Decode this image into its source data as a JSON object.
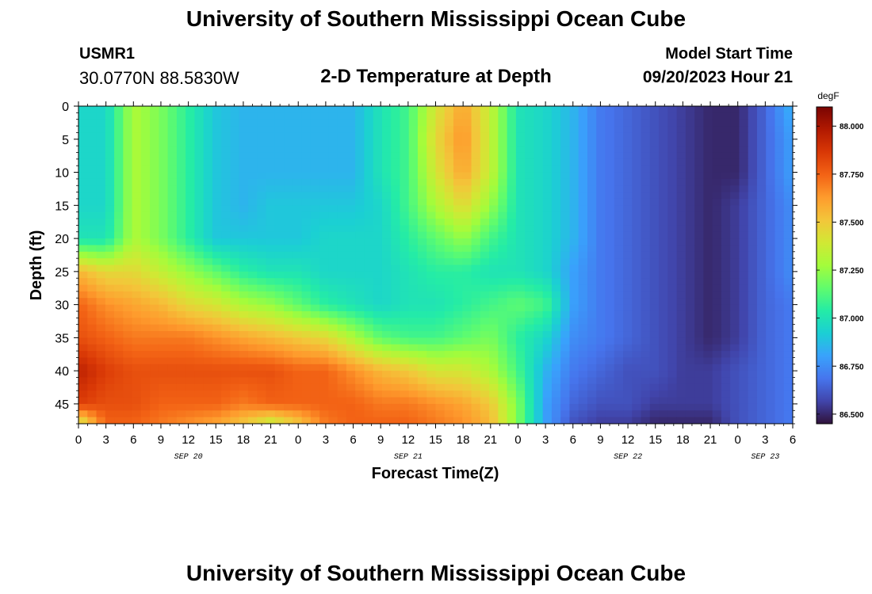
{
  "header": {
    "title": "University of Southern Mississippi Ocean Cube",
    "station_id": "USMR1",
    "station_coords": "30.0770N  88.5830W",
    "subtitle": "2-D Temperature at Depth",
    "model_start_label": "Model Start Time",
    "model_start_value": "09/20/2023 Hour 21"
  },
  "footer": {
    "title": "University of Southern Mississippi Ocean Cube"
  },
  "chart_data": {
    "type": "heatmap",
    "title": "2-D Temperature at Depth",
    "xlabel": "Forecast Time(Z)",
    "ylabel": "Depth (ft)",
    "colorbar_unit": "degF",
    "x_range_hours": [
      0,
      78
    ],
    "x_tick_labels": [
      "0",
      "3",
      "6",
      "9",
      "12",
      "15",
      "18",
      "21",
      "0",
      "3",
      "6",
      "9",
      "12",
      "15",
      "18",
      "21",
      "0",
      "3",
      "6",
      "9",
      "12",
      "15",
      "18",
      "21",
      "0",
      "3",
      "6"
    ],
    "date_labels": [
      {
        "label": "SEP 20",
        "at_hour": 12
      },
      {
        "label": "SEP 21",
        "at_hour": 36
      },
      {
        "label": "SEP 22",
        "at_hour": 60
      },
      {
        "label": "SEP 23",
        "at_hour": 75
      }
    ],
    "y_range_ft": [
      0,
      48
    ],
    "y_tick_labels": [
      "0",
      "5",
      "10",
      "15",
      "20",
      "25",
      "30",
      "35",
      "40",
      "45"
    ],
    "colorbar": {
      "min": 86.45,
      "max": 88.1,
      "ticks": [
        "86.500",
        "86.750",
        "87.000",
        "87.250",
        "87.500",
        "87.750",
        "88.000"
      ],
      "colors": [
        "#30123b",
        "#4145ab",
        "#4675ed",
        "#39a2fc",
        "#1bcfd4",
        "#24eca6",
        "#61fc6c",
        "#a4fc3b",
        "#d1e834",
        "#f3c63a",
        "#fe9b2d",
        "#f36315",
        "#d93806",
        "#b11901",
        "#7a0402"
      ]
    },
    "time_columns_hours": [
      0,
      3,
      6,
      9,
      12,
      15,
      18,
      21,
      24,
      27,
      30,
      33,
      36,
      39,
      42,
      45,
      48,
      51,
      54,
      57,
      60,
      63,
      66,
      69,
      72,
      75,
      78
    ],
    "depth_rows_ft": [
      0,
      5,
      10,
      15,
      20,
      25,
      30,
      35,
      40,
      45,
      48
    ],
    "values_degF": [
      [
        86.95,
        86.95,
        87.3,
        87.2,
        87.05,
        86.9,
        86.85,
        86.85,
        86.85,
        86.85,
        86.85,
        87.0,
        87.1,
        87.4,
        87.6,
        87.35,
        87.0,
        86.95,
        86.85,
        86.7,
        86.65,
        86.6,
        86.55,
        86.5,
        86.5,
        86.65,
        86.85
      ],
      [
        86.95,
        86.95,
        87.3,
        87.2,
        87.05,
        86.9,
        86.85,
        86.85,
        86.85,
        86.85,
        86.85,
        87.0,
        87.1,
        87.45,
        87.65,
        87.35,
        87.0,
        86.95,
        86.85,
        86.7,
        86.65,
        86.6,
        86.55,
        86.5,
        86.5,
        86.65,
        86.8
      ],
      [
        86.95,
        86.95,
        87.3,
        87.2,
        87.05,
        86.9,
        86.85,
        86.85,
        86.85,
        86.85,
        86.85,
        87.0,
        87.1,
        87.4,
        87.6,
        87.35,
        87.0,
        86.95,
        86.85,
        86.7,
        86.65,
        86.6,
        86.55,
        86.5,
        86.5,
        86.65,
        86.8
      ],
      [
        86.95,
        86.95,
        87.3,
        87.2,
        87.05,
        86.9,
        86.85,
        86.9,
        86.9,
        86.9,
        86.9,
        86.95,
        87.1,
        87.3,
        87.45,
        87.25,
        87.0,
        86.95,
        86.85,
        86.7,
        86.65,
        86.6,
        86.55,
        86.5,
        86.55,
        86.65,
        86.75
      ],
      [
        87.0,
        87.0,
        87.3,
        87.2,
        87.05,
        86.9,
        86.9,
        86.9,
        86.9,
        86.95,
        86.95,
        86.95,
        87.05,
        87.15,
        87.25,
        87.1,
        87.0,
        86.95,
        86.85,
        86.7,
        86.65,
        86.6,
        86.55,
        86.5,
        86.55,
        86.65,
        86.75
      ],
      [
        87.55,
        87.45,
        87.45,
        87.35,
        87.25,
        87.15,
        87.05,
        87.0,
        87.0,
        86.95,
        86.95,
        86.95,
        87.0,
        87.05,
        87.05,
        87.0,
        87.0,
        86.95,
        86.8,
        86.7,
        86.65,
        86.6,
        86.55,
        86.5,
        86.55,
        86.65,
        86.75
      ],
      [
        87.75,
        87.65,
        87.6,
        87.55,
        87.45,
        87.4,
        87.3,
        87.25,
        87.15,
        87.05,
        87.0,
        86.95,
        87.0,
        87.0,
        87.05,
        87.1,
        87.15,
        87.1,
        86.8,
        86.7,
        86.65,
        86.6,
        86.55,
        86.5,
        86.55,
        86.65,
        86.7
      ],
      [
        87.8,
        87.75,
        87.7,
        87.7,
        87.7,
        87.65,
        87.6,
        87.55,
        87.5,
        87.45,
        87.3,
        87.15,
        87.1,
        87.1,
        87.15,
        87.2,
        87.05,
        86.95,
        86.75,
        86.7,
        86.65,
        86.6,
        86.55,
        86.5,
        86.55,
        86.65,
        86.7
      ],
      [
        87.95,
        87.85,
        87.8,
        87.8,
        87.8,
        87.8,
        87.8,
        87.8,
        87.75,
        87.75,
        87.65,
        87.55,
        87.5,
        87.4,
        87.4,
        87.3,
        87.1,
        86.85,
        86.7,
        86.65,
        86.6,
        86.6,
        86.55,
        86.55,
        86.6,
        86.65,
        86.7
      ],
      [
        87.85,
        87.8,
        87.8,
        87.75,
        87.75,
        87.75,
        87.7,
        87.75,
        87.75,
        87.75,
        87.75,
        87.7,
        87.7,
        87.65,
        87.6,
        87.5,
        87.2,
        86.8,
        86.65,
        86.6,
        86.6,
        86.55,
        86.55,
        86.55,
        86.6,
        86.65,
        86.7
      ],
      [
        87.35,
        87.75,
        87.75,
        87.7,
        87.65,
        87.6,
        87.5,
        87.35,
        87.5,
        87.7,
        87.75,
        87.75,
        87.75,
        87.7,
        87.65,
        87.55,
        87.2,
        86.8,
        86.6,
        86.55,
        86.55,
        86.5,
        86.5,
        86.5,
        86.6,
        86.65,
        86.7
      ]
    ]
  }
}
